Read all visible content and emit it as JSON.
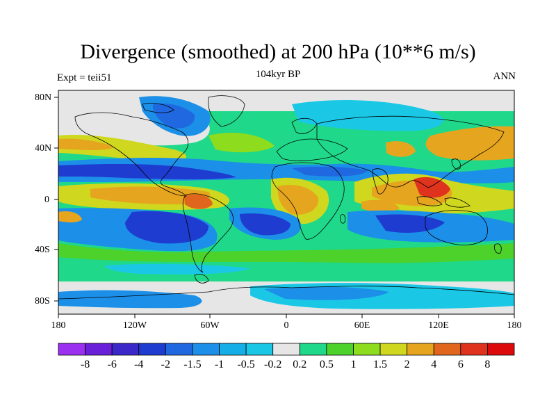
{
  "title": "Divergence (smoothed) at 200 hPa (10**6 m/s)",
  "left_label": "Expt = teii51",
  "center_label": "104kyr BP",
  "right_label": "ANN",
  "lat_ticks": [
    "80N",
    "40N",
    "0",
    "40S",
    "80S"
  ],
  "lon_ticks": [
    "180",
    "120W",
    "60W",
    "0",
    "60E",
    "120E",
    "180"
  ],
  "colorbar": {
    "labels": [
      "-8",
      "-6",
      "-4",
      "-2",
      "-1.5",
      "-1",
      "-0.5",
      "-0.2",
      "0.2",
      "0.5",
      "1",
      "1.5",
      "2",
      "4",
      "6",
      "8"
    ],
    "colors": [
      "#9b30f0",
      "#6a1fd8",
      "#3c28c8",
      "#1e3ccf",
      "#1f68e0",
      "#1c8fe8",
      "#16aee6",
      "#1ac8e6",
      "#e6e6e6",
      "#1fd88a",
      "#4cd22a",
      "#8edc1e",
      "#cfd81e",
      "#e6a51e",
      "#e0661e",
      "#e0331e",
      "#dc0a0a"
    ]
  },
  "colors": {
    "land_outline": "#000000",
    "neutral": "#e6e6e6"
  }
}
